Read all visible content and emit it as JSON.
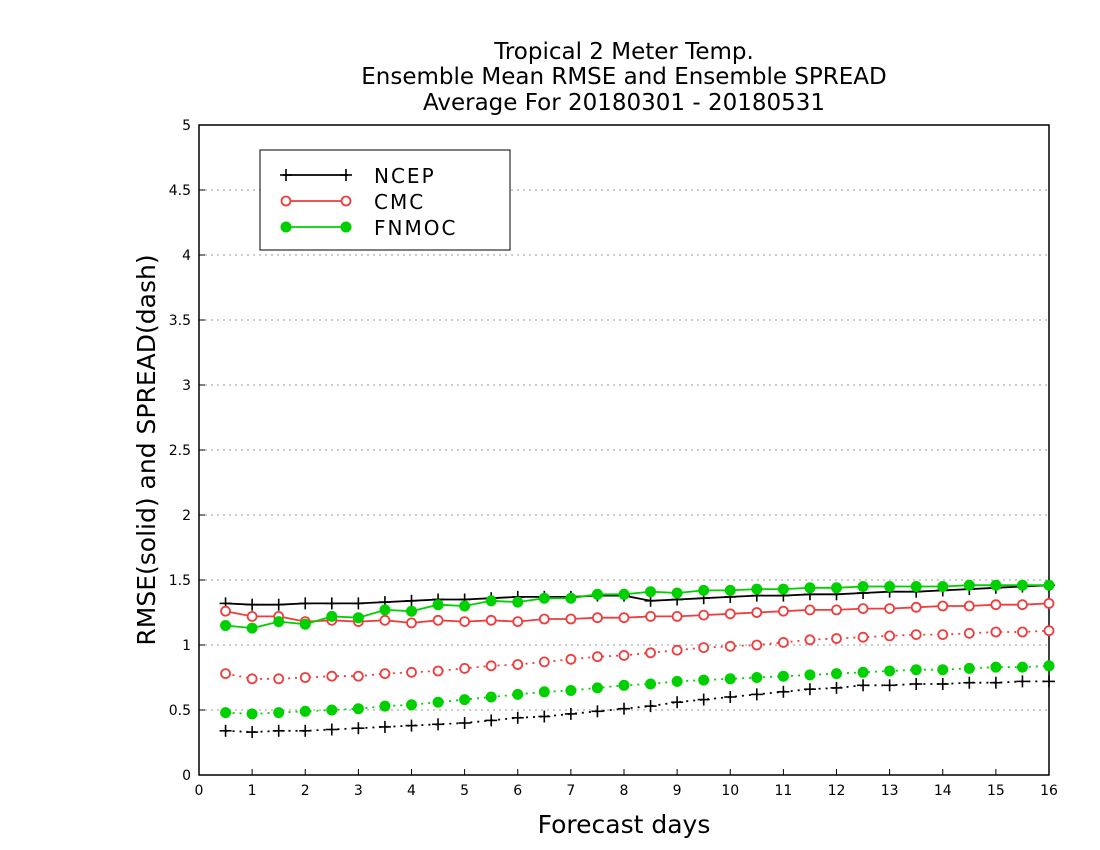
{
  "chart_data": {
    "type": "line",
    "title_lines": [
      "Tropical 2 Meter Temp.",
      "Ensemble Mean RMSE and Ensemble SPREAD",
      "Average For 20180301 - 20180531"
    ],
    "xlabel": "Forecast days",
    "ylabel": "RMSE(solid) and SPREAD(dash)",
    "xlim": [
      0,
      16
    ],
    "ylim": [
      0,
      5
    ],
    "x_ticks": [
      "0",
      "1",
      "2",
      "3",
      "4",
      "5",
      "6",
      "7",
      "8",
      "9",
      "10",
      "11",
      "12",
      "13",
      "14",
      "15",
      "16"
    ],
    "y_ticks": [
      "0",
      "0.5",
      "1",
      "1.5",
      "2",
      "2.5",
      "3",
      "3.5",
      "4",
      "4.5",
      "5"
    ],
    "grid": "horizontal-dotted",
    "legend_position": "top-left",
    "x": [
      0.5,
      1,
      1.5,
      2,
      2.5,
      3,
      3.5,
      4,
      4.5,
      5,
      5.5,
      6,
      6.5,
      7,
      7.5,
      8,
      8.5,
      9,
      9.5,
      10,
      10.5,
      11,
      11.5,
      12,
      12.5,
      13,
      13.5,
      14,
      14.5,
      15,
      15.5,
      16
    ],
    "series": [
      {
        "name": "NCEP",
        "color": "#000000",
        "marker": "plus",
        "rmse": [
          1.32,
          1.31,
          1.31,
          1.32,
          1.32,
          1.32,
          1.33,
          1.34,
          1.35,
          1.35,
          1.36,
          1.37,
          1.37,
          1.37,
          1.38,
          1.38,
          1.34,
          1.35,
          1.36,
          1.37,
          1.38,
          1.38,
          1.39,
          1.39,
          1.4,
          1.41,
          1.41,
          1.42,
          1.43,
          1.44,
          1.45,
          1.46
        ],
        "spread": [
          0.34,
          0.33,
          0.34,
          0.34,
          0.35,
          0.36,
          0.37,
          0.38,
          0.39,
          0.4,
          0.42,
          0.44,
          0.45,
          0.47,
          0.49,
          0.51,
          0.53,
          0.56,
          0.58,
          0.6,
          0.62,
          0.64,
          0.66,
          0.67,
          0.69,
          0.69,
          0.7,
          0.7,
          0.71,
          0.71,
          0.72,
          0.72
        ]
      },
      {
        "name": "CMC",
        "color": "#f03c3c",
        "marker": "open-circle",
        "rmse": [
          1.26,
          1.22,
          1.22,
          1.18,
          1.19,
          1.18,
          1.19,
          1.17,
          1.19,
          1.18,
          1.19,
          1.18,
          1.2,
          1.2,
          1.21,
          1.21,
          1.22,
          1.22,
          1.23,
          1.24,
          1.25,
          1.26,
          1.27,
          1.27,
          1.28,
          1.28,
          1.29,
          1.3,
          1.3,
          1.31,
          1.31,
          1.32
        ],
        "spread": [
          0.78,
          0.74,
          0.74,
          0.75,
          0.76,
          0.76,
          0.78,
          0.79,
          0.8,
          0.82,
          0.84,
          0.85,
          0.87,
          0.89,
          0.91,
          0.92,
          0.94,
          0.96,
          0.98,
          0.99,
          1.0,
          1.02,
          1.04,
          1.05,
          1.06,
          1.07,
          1.08,
          1.08,
          1.09,
          1.1,
          1.1,
          1.11
        ]
      },
      {
        "name": "FNMOC",
        "color": "#00d000",
        "marker": "filled-circle",
        "rmse": [
          1.15,
          1.13,
          1.18,
          1.16,
          1.22,
          1.21,
          1.27,
          1.26,
          1.31,
          1.3,
          1.34,
          1.33,
          1.36,
          1.36,
          1.39,
          1.39,
          1.41,
          1.4,
          1.42,
          1.42,
          1.43,
          1.43,
          1.44,
          1.44,
          1.45,
          1.45,
          1.45,
          1.45,
          1.46,
          1.46,
          1.46,
          1.46
        ],
        "spread": [
          0.48,
          0.47,
          0.48,
          0.49,
          0.5,
          0.51,
          0.53,
          0.54,
          0.56,
          0.58,
          0.6,
          0.62,
          0.64,
          0.65,
          0.67,
          0.69,
          0.7,
          0.72,
          0.73,
          0.74,
          0.75,
          0.76,
          0.77,
          0.78,
          0.79,
          0.8,
          0.81,
          0.81,
          0.82,
          0.83,
          0.83,
          0.84
        ]
      }
    ]
  }
}
